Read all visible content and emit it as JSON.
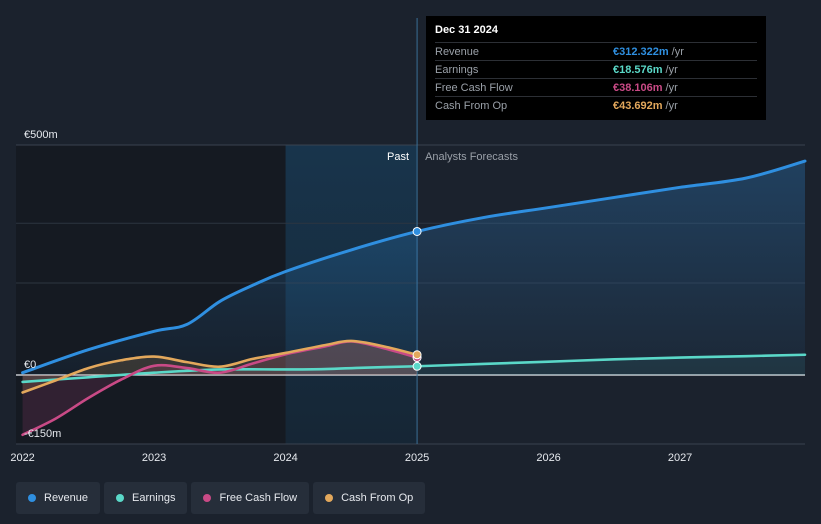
{
  "colors": {
    "revenue": "#2f8fe0",
    "earnings": "#5ad8c8",
    "free_cash_flow": "#c94a86",
    "cash_from_op": "#e3a85c",
    "background": "#1b222d"
  },
  "tooltip": {
    "date": "Dec 31 2024",
    "rows": [
      {
        "label": "Revenue",
        "value": "€312.322m",
        "unit": "/yr",
        "color": "#2f8fe0"
      },
      {
        "label": "Earnings",
        "value": "€18.576m",
        "unit": "/yr",
        "color": "#5ad8c8"
      },
      {
        "label": "Free Cash Flow",
        "value": "€38.106m",
        "unit": "/yr",
        "color": "#c94a86"
      },
      {
        "label": "Cash From Op",
        "value": "€43.692m",
        "unit": "/yr",
        "color": "#e3a85c"
      }
    ]
  },
  "legend": [
    {
      "label": "Revenue",
      "color": "#2f8fe0"
    },
    {
      "label": "Earnings",
      "color": "#5ad8c8"
    },
    {
      "label": "Free Cash Flow",
      "color": "#c94a86"
    },
    {
      "label": "Cash From Op",
      "color": "#e3a85c"
    }
  ],
  "chart_data": {
    "type": "line",
    "title": "",
    "xlabel": "",
    "ylabel": "",
    "xlim": [
      2021.95,
      2027.95
    ],
    "ylim": [
      -150,
      500
    ],
    "x_ticks": [
      {
        "label": "2022",
        "value": 2022
      },
      {
        "label": "2023",
        "value": 2023
      },
      {
        "label": "2024",
        "value": 2024
      },
      {
        "label": "2025",
        "value": 2025
      },
      {
        "label": "2026",
        "value": 2026
      },
      {
        "label": "2027",
        "value": 2027
      }
    ],
    "y_ticks": [
      {
        "label": "€500m",
        "value": 500
      },
      {
        "label": "€0",
        "value": 0
      },
      {
        "label": "-€150m",
        "value": -150
      }
    ],
    "divider_x": 2025,
    "past_label": "Past",
    "forecast_label": "Analysts Forecasts",
    "highlight_range": [
      2024,
      2025
    ],
    "series": [
      {
        "name": "Revenue",
        "key": "revenue",
        "color": "#2f8fe0",
        "past": [
          [
            2022,
            5
          ],
          [
            2022.5,
            55
          ],
          [
            2023,
            95
          ],
          [
            2023.25,
            110
          ],
          [
            2023.5,
            160
          ],
          [
            2023.75,
            195
          ],
          [
            2024,
            225
          ],
          [
            2024.5,
            272
          ],
          [
            2025,
            312
          ]
        ],
        "forecast": [
          [
            2025,
            312
          ],
          [
            2025.5,
            342
          ],
          [
            2026,
            364
          ],
          [
            2026.5,
            386
          ],
          [
            2027,
            408
          ],
          [
            2027.5,
            428
          ],
          [
            2027.95,
            465
          ]
        ]
      },
      {
        "name": "Earnings",
        "key": "earnings",
        "color": "#5ad8c8",
        "past": [
          [
            2022,
            -15
          ],
          [
            2022.5,
            -5
          ],
          [
            2023,
            5
          ],
          [
            2023.5,
            12
          ],
          [
            2024,
            12
          ],
          [
            2024.3,
            13
          ],
          [
            2024.6,
            16
          ],
          [
            2025,
            19
          ]
        ],
        "forecast": [
          [
            2025,
            19
          ],
          [
            2025.5,
            24
          ],
          [
            2026,
            29
          ],
          [
            2026.5,
            34
          ],
          [
            2027,
            38
          ],
          [
            2027.5,
            41
          ],
          [
            2027.95,
            44
          ]
        ]
      },
      {
        "name": "Free Cash Flow",
        "key": "free_cash_flow",
        "color": "#c94a86",
        "past": [
          [
            2022,
            -130
          ],
          [
            2022.25,
            -95
          ],
          [
            2022.5,
            -50
          ],
          [
            2022.75,
            -10
          ],
          [
            2023,
            20
          ],
          [
            2023.25,
            15
          ],
          [
            2023.5,
            5
          ],
          [
            2023.75,
            25
          ],
          [
            2024,
            45
          ],
          [
            2024.3,
            62
          ],
          [
            2024.5,
            73
          ],
          [
            2024.75,
            58
          ],
          [
            2025,
            38
          ]
        ],
        "forecast": []
      },
      {
        "name": "Cash From Op",
        "key": "cash_from_op",
        "color": "#e3a85c",
        "past": [
          [
            2022,
            -38
          ],
          [
            2022.25,
            -12
          ],
          [
            2022.5,
            15
          ],
          [
            2022.75,
            32
          ],
          [
            2023,
            40
          ],
          [
            2023.25,
            28
          ],
          [
            2023.5,
            18
          ],
          [
            2023.75,
            35
          ],
          [
            2024,
            48
          ],
          [
            2024.3,
            65
          ],
          [
            2024.5,
            74
          ],
          [
            2024.75,
            62
          ],
          [
            2025,
            44
          ]
        ],
        "forecast": []
      }
    ]
  }
}
